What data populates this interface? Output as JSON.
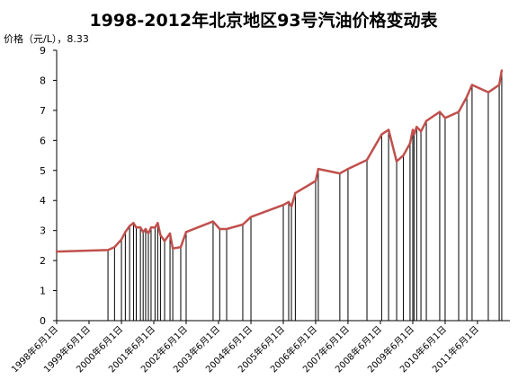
{
  "chart_data": {
    "type": "line",
    "title": "1998-2012年北京地区93号汽油价格变动表",
    "ylabel": "价格（元/L），8.33",
    "xlabel": "",
    "ylim": [
      0,
      9
    ],
    "yticks": [
      0,
      1,
      2,
      3,
      4,
      5,
      6,
      7,
      8,
      9
    ],
    "xticks": [
      "1998年6月1日",
      "1999年6月1日",
      "2000年6月1日",
      "2001年6月1日",
      "2002年6月1日",
      "2003年6月1日",
      "2004年6月1日",
      "2005年6月1日",
      "2006年6月1日",
      "2007年6月1日",
      "2008年6月1日",
      "2009年6月1日",
      "2010年6月1日",
      "2011年6月1日"
    ],
    "xlim": [
      "1998-06-01",
      "2012-06-01"
    ],
    "grid": false,
    "legend": "none",
    "line_color": "#c0504d",
    "drop_line_color": "#000000",
    "series": [
      {
        "points": [
          [
            "1998-06-01",
            2.3
          ],
          [
            "2000-01-01",
            2.35
          ],
          [
            "2000-03-15",
            2.45
          ],
          [
            "2000-06-01",
            2.7
          ],
          [
            "2000-07-15",
            2.95
          ],
          [
            "2000-09-01",
            3.15
          ],
          [
            "2000-10-15",
            3.25
          ],
          [
            "2000-11-15",
            3.1
          ],
          [
            "2001-01-01",
            3.1
          ],
          [
            "2001-02-01",
            2.95
          ],
          [
            "2001-03-01",
            3.05
          ],
          [
            "2001-04-01",
            2.9
          ],
          [
            "2001-05-01",
            3.1
          ],
          [
            "2001-06-15",
            3.1
          ],
          [
            "2001-07-15",
            3.25
          ],
          [
            "2001-08-15",
            2.85
          ],
          [
            "2001-10-01",
            2.65
          ],
          [
            "2001-12-01",
            2.9
          ],
          [
            "2002-01-01",
            2.4
          ],
          [
            "2002-04-01",
            2.45
          ],
          [
            "2002-06-01",
            2.95
          ],
          [
            "2003-04-01",
            3.3
          ],
          [
            "2003-06-15",
            3.05
          ],
          [
            "2003-09-01",
            3.05
          ],
          [
            "2004-03-01",
            3.2
          ],
          [
            "2004-06-01",
            3.45
          ],
          [
            "2005-06-01",
            3.85
          ],
          [
            "2005-08-01",
            3.95
          ],
          [
            "2005-09-01",
            3.8
          ],
          [
            "2005-10-15",
            4.25
          ],
          [
            "2006-06-01",
            4.65
          ],
          [
            "2006-07-01",
            5.05
          ],
          [
            "2007-03-01",
            4.9
          ],
          [
            "2007-06-01",
            5.05
          ],
          [
            "2008-01-01",
            5.35
          ],
          [
            "2008-06-15",
            6.2
          ],
          [
            "2008-09-01",
            6.35
          ],
          [
            "2008-12-01",
            5.3
          ],
          [
            "2009-02-15",
            5.5
          ],
          [
            "2009-05-01",
            5.9
          ],
          [
            "2009-06-01",
            6.35
          ],
          [
            "2009-06-15",
            6.2
          ],
          [
            "2009-07-15",
            6.45
          ],
          [
            "2009-09-01",
            6.3
          ],
          [
            "2009-11-01",
            6.65
          ],
          [
            "2010-04-01",
            6.95
          ],
          [
            "2010-06-01",
            6.75
          ],
          [
            "2010-11-01",
            6.95
          ],
          [
            "2011-02-01",
            7.45
          ],
          [
            "2011-04-01",
            7.85
          ],
          [
            "2011-10-01",
            7.6
          ],
          [
            "2012-02-01",
            7.85
          ],
          [
            "2012-03-01",
            8.33
          ]
        ]
      }
    ]
  }
}
